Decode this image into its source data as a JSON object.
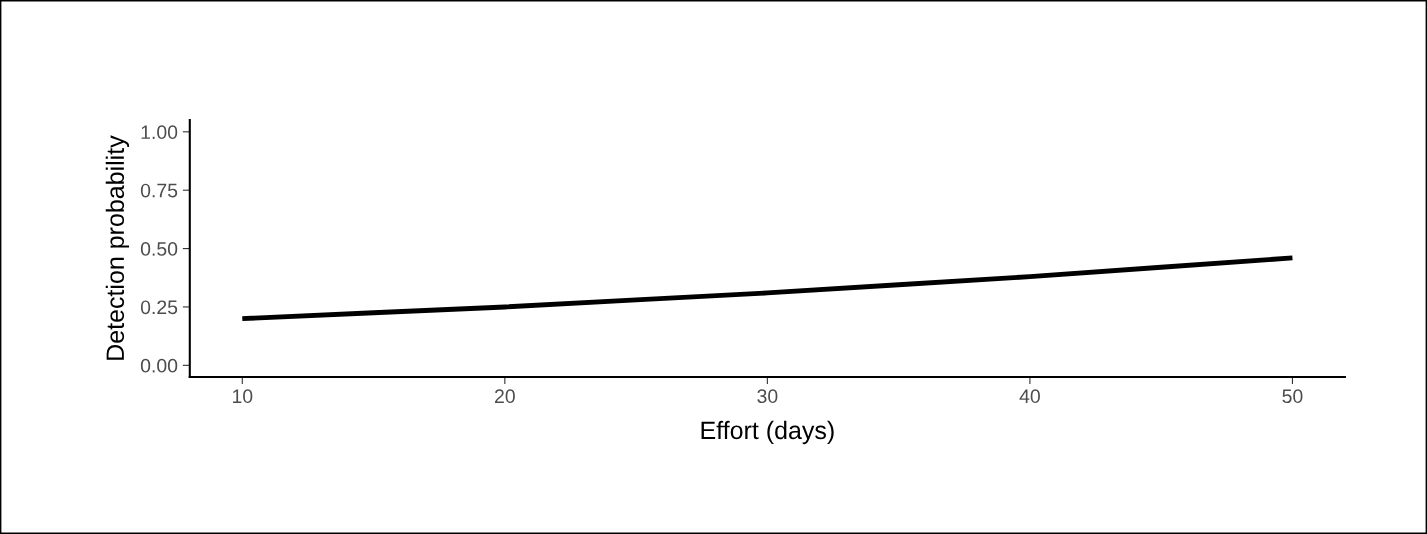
{
  "chart_data": {
    "type": "line",
    "xlabel": "Effort (days)",
    "ylabel": "Detection probability",
    "x": [
      10,
      15,
      20,
      25,
      30,
      35,
      40,
      45,
      50
    ],
    "series": [
      {
        "color": "#000000",
        "values": [
          0.2,
          0.225,
          0.25,
          0.28,
          0.31,
          0.345,
          0.38,
          0.42,
          0.46
        ]
      }
    ],
    "xlim": [
      8,
      52
    ],
    "xticks": [
      10,
      20,
      30,
      40,
      50
    ],
    "ylim": [
      -0.05,
      1.05
    ],
    "yticks": [
      {
        "value": 0,
        "label": "0.00"
      },
      {
        "value": 0.25,
        "label": "0.25"
      },
      {
        "value": 0.5,
        "label": "0.50"
      },
      {
        "value": 0.75,
        "label": "0.75"
      },
      {
        "value": 1,
        "label": "1.00"
      }
    ],
    "grid": false,
    "legend": false
  }
}
